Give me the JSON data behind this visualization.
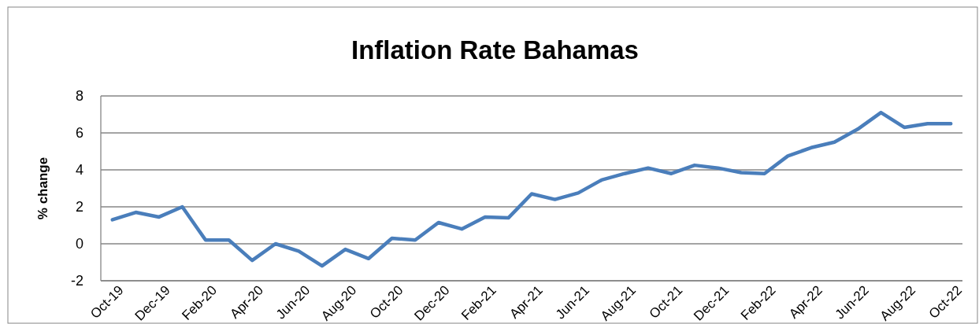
{
  "chart_data": {
    "type": "line",
    "title": "Inflation Rate Bahamas",
    "ylabel": "% change",
    "categories": [
      "Oct-19",
      null,
      "Dec-19",
      null,
      "Feb-20",
      null,
      "Apr-20",
      null,
      "Jun-20",
      null,
      "Aug-20",
      null,
      "Oct-20",
      null,
      "Dec-20",
      null,
      "Feb-21",
      null,
      "Apr-21",
      null,
      "Jun-21",
      null,
      "Aug-21",
      null,
      "Oct-21",
      null,
      "Dec-21",
      null,
      "Feb-22",
      null,
      "Apr-22",
      null,
      "Jun-22",
      null,
      "Aug-22",
      null,
      "Oct-22"
    ],
    "series": [
      {
        "color": "#4a7ebb",
        "values": [
          1.3,
          1.7,
          1.45,
          2.0,
          0.2,
          0.2,
          -0.9,
          0.0,
          -0.4,
          -1.2,
          -0.3,
          -0.8,
          0.3,
          0.2,
          1.15,
          0.8,
          1.45,
          1.4,
          2.7,
          2.4,
          2.75,
          3.45,
          3.8,
          4.1,
          3.8,
          4.25,
          4.1,
          3.85,
          3.8,
          4.75,
          5.2,
          5.5,
          6.2,
          7.1,
          6.3,
          6.5,
          6.5
        ]
      }
    ],
    "ylim": [
      -2,
      8
    ],
    "yticks": [
      -2,
      0,
      2,
      4,
      6,
      8
    ],
    "grid": "y"
  }
}
